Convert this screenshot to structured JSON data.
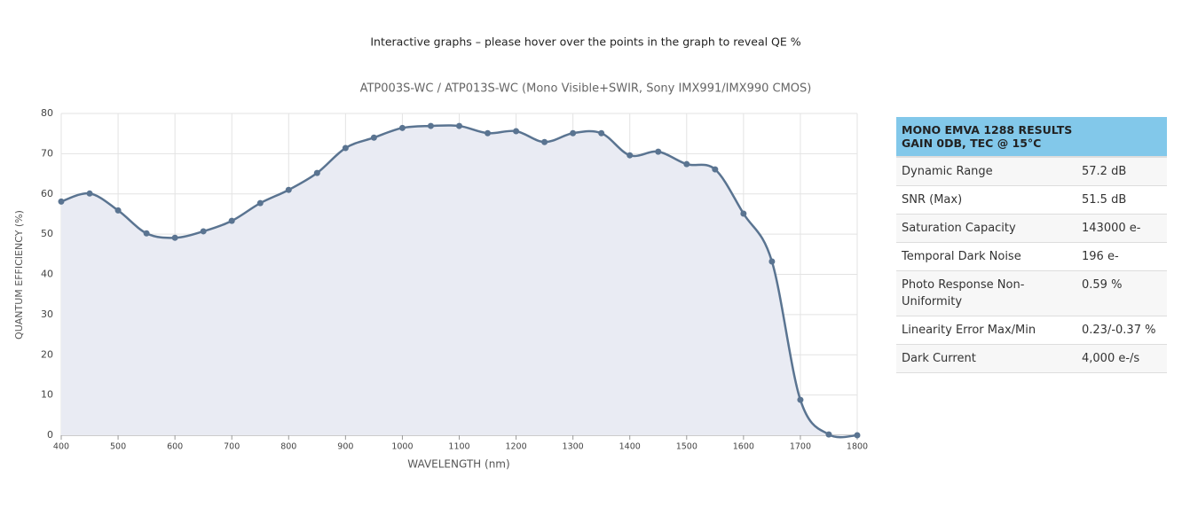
{
  "header": {
    "note": "Interactive graphs – please hover over the points in the graph to reveal QE %"
  },
  "chart_data": {
    "type": "line",
    "title": "ATP003S-WC / ATP013S-WC (Mono Visible+SWIR, Sony IMX991/IMX990 CMOS)",
    "x_label": "WAVELENGTH (nm)",
    "y_label": "QUANTUM EFFICIENCY (%)",
    "x": [
      400,
      450,
      500,
      550,
      600,
      650,
      700,
      750,
      800,
      850,
      900,
      950,
      1000,
      1050,
      1100,
      1150,
      1200,
      1250,
      1300,
      1350,
      1400,
      1450,
      1500,
      1550,
      1600,
      1650,
      1700,
      1750,
      1800
    ],
    "series": [
      {
        "name": "QE",
        "color": "#5a7491",
        "fill": "#e9ebf3",
        "values": [
          58.1,
          60.1,
          55.9,
          50.2,
          49.1,
          50.7,
          53.3,
          57.7,
          61.0,
          65.2,
          71.4,
          74.0,
          76.4,
          76.9,
          76.9,
          75.1,
          75.6,
          72.9,
          75.1,
          75.1,
          69.6,
          70.5,
          67.4,
          66.1,
          55.1,
          43.2,
          8.8,
          0.2,
          0
        ]
      }
    ],
    "xlim": [
      400,
      1800
    ],
    "xticks": [
      400,
      500,
      600,
      700,
      800,
      900,
      1000,
      1100,
      1200,
      1300,
      1400,
      1500,
      1600,
      1700,
      1800
    ],
    "ylim": [
      0,
      80
    ],
    "yticks": [
      0,
      10,
      20,
      30,
      40,
      50,
      60,
      70,
      80
    ],
    "grid": true
  },
  "table": {
    "title": [
      "MONO EMVA 1288 RESULTS",
      "GAIN 0DB, TEC @ 15°C"
    ],
    "rows": [
      [
        "Dynamic Range",
        "57.2 dB"
      ],
      [
        "SNR (Max)",
        "51.5 dB"
      ],
      [
        "Saturation Capacity",
        "143000 e-"
      ],
      [
        "Temporal Dark Noise",
        "196 e-"
      ],
      [
        "Photo Response Non-Uniformity",
        "0.59 %"
      ],
      [
        "Linearity Error Max/Min",
        "0.23/-0.37 %"
      ],
      [
        "Dark Current",
        "4,000 e-/s"
      ]
    ]
  }
}
